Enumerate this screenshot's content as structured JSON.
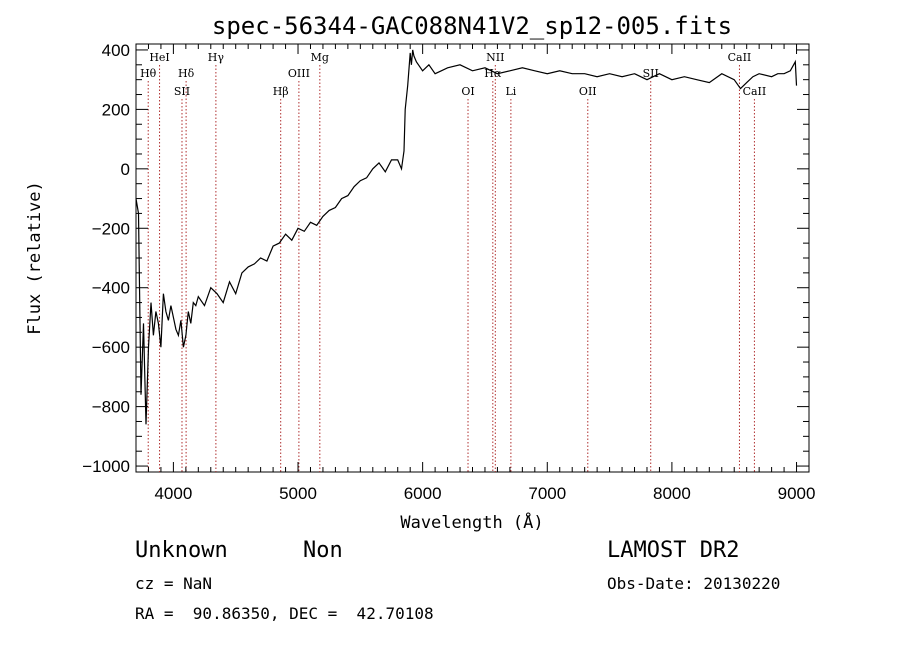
{
  "chart_data": {
    "type": "line",
    "title": "spec-56344-GAC088N41V2_sp12-005.fits",
    "xlabel": "Wavelength (Å)",
    "ylabel": "Flux (relative)",
    "xlim": [
      3700,
      9100
    ],
    "ylim": [
      -1020,
      420
    ],
    "xticks": [
      "4000",
      "5000",
      "6000",
      "7000",
      "8000",
      "9000"
    ],
    "xtick_values": [
      4000,
      5000,
      6000,
      7000,
      8000,
      9000
    ],
    "yticks": [
      "400",
      "200",
      "0",
      "−200",
      "−400",
      "−600",
      "−800",
      "−1000"
    ],
    "ytick_values": [
      400,
      200,
      0,
      -200,
      -400,
      -600,
      -800,
      -1000
    ],
    "line_color": "#000000",
    "marker_color": "#b03030",
    "spectrum": {
      "x": [
        3700,
        3720,
        3740,
        3760,
        3780,
        3800,
        3820,
        3840,
        3860,
        3880,
        3900,
        3920,
        3940,
        3960,
        3980,
        4000,
        4020,
        4040,
        4060,
        4080,
        4100,
        4120,
        4140,
        4160,
        4180,
        4200,
        4250,
        4300,
        4350,
        4400,
        4450,
        4500,
        4550,
        4600,
        4650,
        4700,
        4750,
        4800,
        4850,
        4900,
        4950,
        5000,
        5050,
        5100,
        5150,
        5200,
        5250,
        5300,
        5350,
        5400,
        5450,
        5500,
        5550,
        5600,
        5650,
        5700,
        5750,
        5800,
        5830,
        5850,
        5860,
        5880,
        5900,
        5910,
        5920,
        5930,
        5950,
        6000,
        6050,
        6100,
        6150,
        6200,
        6300,
        6400,
        6500,
        6600,
        6700,
        6800,
        6900,
        7000,
        7100,
        7200,
        7300,
        7400,
        7500,
        7600,
        7700,
        7800,
        7900,
        8000,
        8100,
        8200,
        8300,
        8400,
        8500,
        8550,
        8600,
        8650,
        8700,
        8800,
        8850,
        8900,
        8950,
        8990,
        9000
      ],
      "y": [
        -100,
        -150,
        -760,
        -520,
        -860,
        -600,
        -450,
        -560,
        -480,
        -520,
        -600,
        -420,
        -480,
        -510,
        -460,
        -500,
        -540,
        -560,
        -510,
        -600,
        -560,
        -480,
        -520,
        -450,
        -460,
        -430,
        -460,
        -400,
        -420,
        -450,
        -380,
        -420,
        -350,
        -330,
        -320,
        -300,
        -310,
        -260,
        -250,
        -220,
        -240,
        -200,
        -210,
        -180,
        -190,
        -160,
        -140,
        -130,
        -100,
        -90,
        -60,
        -40,
        -30,
        0,
        20,
        -10,
        30,
        30,
        0,
        60,
        200,
        280,
        390,
        350,
        400,
        380,
        360,
        330,
        350,
        320,
        330,
        340,
        350,
        330,
        340,
        320,
        330,
        340,
        330,
        320,
        330,
        320,
        320,
        310,
        320,
        310,
        320,
        300,
        320,
        300,
        310,
        300,
        290,
        320,
        300,
        270,
        290,
        310,
        320,
        310,
        320,
        320,
        330,
        360,
        280
      ]
    },
    "lines": [
      {
        "label": "Hθ",
        "x": 3798,
        "row": 2
      },
      {
        "label": "HeI",
        "x": 3889,
        "row": 1
      },
      {
        "label": "Hδ",
        "x": 4102,
        "row": 2
      },
      {
        "label": "SII",
        "x": 4069,
        "row": 3
      },
      {
        "label": "Hγ",
        "x": 4341,
        "row": 1
      },
      {
        "label": "Hβ",
        "x": 4861,
        "row": 3
      },
      {
        "label": "OIII",
        "x": 5007,
        "row": 2
      },
      {
        "label": "Mg",
        "x": 5175,
        "row": 1
      },
      {
        "label": "OI",
        "x": 6364,
        "row": 3
      },
      {
        "label": "NII",
        "x": 6583,
        "row": 1
      },
      {
        "label": "Hα",
        "x": 6563,
        "row": 2
      },
      {
        "label": "Li",
        "x": 6708,
        "row": 3
      },
      {
        "label": "OII",
        "x": 7325,
        "row": 3
      },
      {
        "label": "SII",
        "x": 7830,
        "row": 2
      },
      {
        "label": "CaII",
        "x": 8542,
        "row": 1
      },
      {
        "label": "CaII",
        "x": 8662,
        "row": 3
      }
    ]
  },
  "info": {
    "class": "Unknown",
    "subclass": "Non",
    "cz": "cz = NaN",
    "coords": "RA =  90.86350, DEC =  42.70108",
    "survey": "LAMOST DR2",
    "obs_date": "Obs-Date: 20130220"
  }
}
